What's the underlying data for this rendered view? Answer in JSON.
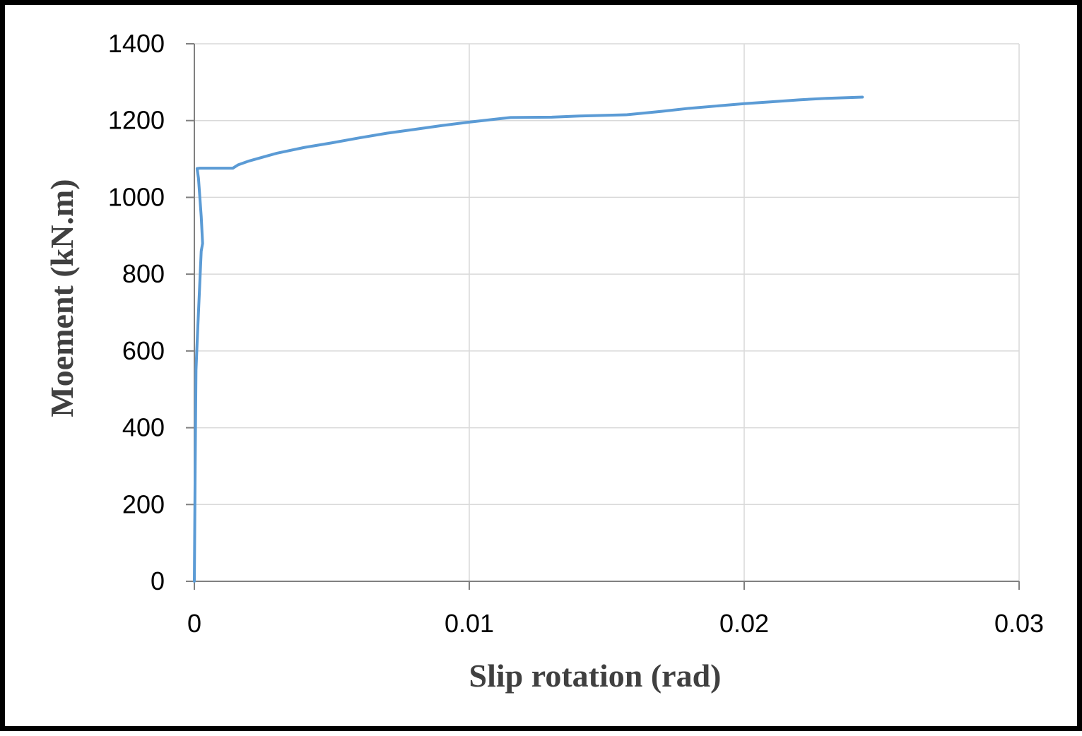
{
  "chart_data": {
    "type": "line",
    "title": "",
    "xlabel": "Slip rotation (rad)",
    "ylabel": "Moement (kN.m)",
    "xlim": [
      0,
      0.03
    ],
    "ylim": [
      0,
      1400
    ],
    "x_ticks": [
      0,
      0.01,
      0.02,
      0.03
    ],
    "x_tick_labels": [
      "0",
      "0.01",
      "0.02",
      "0.03"
    ],
    "y_ticks": [
      0,
      200,
      400,
      600,
      800,
      1000,
      1200,
      1400
    ],
    "y_tick_labels": [
      "0",
      "200",
      "400",
      "600",
      "800",
      "1000",
      "1200",
      "1400"
    ],
    "grid": true,
    "legend": "none",
    "series": [
      {
        "color": "#5b9bd5",
        "points": [
          [
            0.0,
            0
          ],
          [
            3e-05,
            300
          ],
          [
            6e-05,
            550
          ],
          [
            0.0001,
            620
          ],
          [
            0.00015,
            700
          ],
          [
            0.00025,
            860
          ],
          [
            0.0003,
            880
          ],
          [
            0.00025,
            950
          ],
          [
            0.00015,
            1050
          ],
          [
            0.0001,
            1075
          ],
          [
            0.0002,
            1076
          ],
          [
            0.0014,
            1076
          ],
          [
            0.0016,
            1085
          ],
          [
            0.002,
            1095
          ],
          [
            0.003,
            1115
          ],
          [
            0.004,
            1130
          ],
          [
            0.005,
            1142
          ],
          [
            0.006,
            1155
          ],
          [
            0.007,
            1167
          ],
          [
            0.008,
            1177
          ],
          [
            0.009,
            1187
          ],
          [
            0.01,
            1196
          ],
          [
            0.011,
            1204
          ],
          [
            0.0115,
            1208
          ],
          [
            0.013,
            1209
          ],
          [
            0.014,
            1212
          ],
          [
            0.0157,
            1215
          ],
          [
            0.017,
            1224
          ],
          [
            0.018,
            1232
          ],
          [
            0.019,
            1238
          ],
          [
            0.02,
            1244
          ],
          [
            0.021,
            1249
          ],
          [
            0.022,
            1254
          ],
          [
            0.023,
            1258
          ],
          [
            0.0243,
            1261
          ]
        ]
      }
    ]
  }
}
